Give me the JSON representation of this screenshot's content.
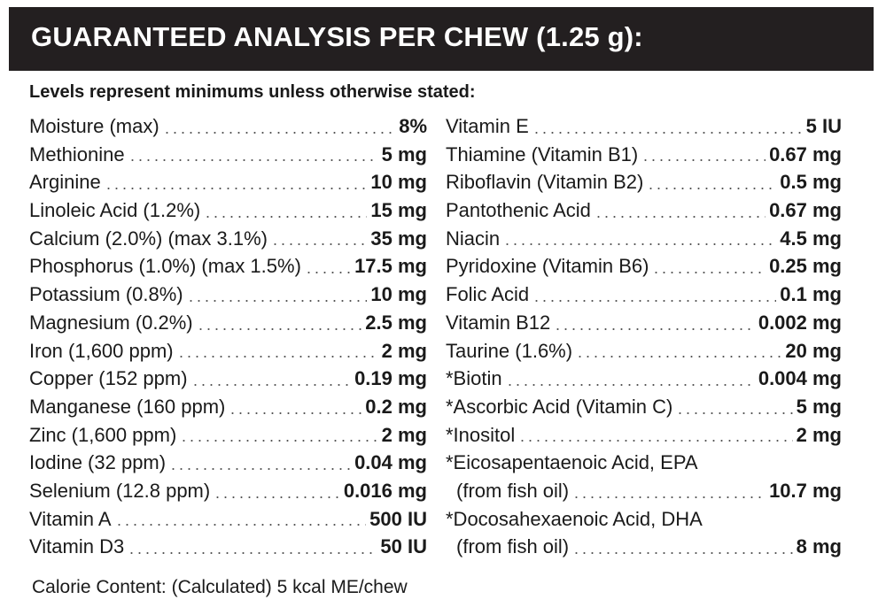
{
  "header": {
    "title": "GUARANTEED ANALYSIS PER CHEW (1.25 g):"
  },
  "subtitle": "Levels represent minimums unless otherwise stated:",
  "left": [
    {
      "label": "Moisture (max)",
      "value": "8%"
    },
    {
      "label": "Methionine",
      "value": "5 mg"
    },
    {
      "label": "Arginine",
      "value": "10 mg"
    },
    {
      "label": "Linoleic Acid (1.2%)",
      "value": "15 mg"
    },
    {
      "label": "Calcium (2.0%) (max 3.1%)",
      "value": "35 mg"
    },
    {
      "label": "Phosphorus (1.0%) (max 1.5%)",
      "value": "17.5 mg"
    },
    {
      "label": "Potassium (0.8%)",
      "value": "10 mg"
    },
    {
      "label": "Magnesium (0.2%)",
      "value": "2.5 mg"
    },
    {
      "label": "Iron (1,600 ppm)",
      "value": "2 mg"
    },
    {
      "label": "Copper (152 ppm)",
      "value": "0.19 mg"
    },
    {
      "label": "Manganese (160 ppm)",
      "value": "0.2 mg"
    },
    {
      "label": "Zinc (1,600 ppm)",
      "value": "2 mg"
    },
    {
      "label": "Iodine (32 ppm)",
      "value": "0.04 mg"
    },
    {
      "label": "Selenium  (12.8 ppm)",
      "value": "0.016 mg"
    },
    {
      "label": "Vitamin A",
      "value": "500 IU"
    },
    {
      "label": "Vitamin D3",
      "value": "50 IU"
    }
  ],
  "right": [
    {
      "label": "Vitamin E",
      "value": "5 IU"
    },
    {
      "label": "Thiamine (Vitamin B1)",
      "value": "0.67 mg"
    },
    {
      "label": "Riboflavin (Vitamin B2)",
      "value": "0.5 mg"
    },
    {
      "label": "Pantothenic Acid",
      "value": "0.67 mg"
    },
    {
      "label": "Niacin",
      "value": "4.5 mg"
    },
    {
      "label": "Pyridoxine (Vitamin B6)",
      "value": "0.25 mg"
    },
    {
      "label": "Folic Acid",
      "value": "0.1 mg"
    },
    {
      "label": "Vitamin B12",
      "value": "0.002 mg"
    },
    {
      "label": "Taurine (1.6%)",
      "value": "20 mg"
    },
    {
      "label": "*Biotin",
      "value": "0.004 mg"
    },
    {
      "label": "*Ascorbic Acid (Vitamin C)",
      "value": "5 mg"
    },
    {
      "label": "*Inositol",
      "value": "2 mg"
    },
    {
      "label": "*Eicosapentaenoic Acid, EPA",
      "sublabel": "(from fish oil)",
      "value": "10.7 mg"
    },
    {
      "label": "*Docosahexaenoic Acid, DHA",
      "sublabel": "(from fish oil)",
      "value": "8 mg"
    }
  ],
  "footer": "Calorie Content: (Calculated) 5 kcal ME/chew"
}
